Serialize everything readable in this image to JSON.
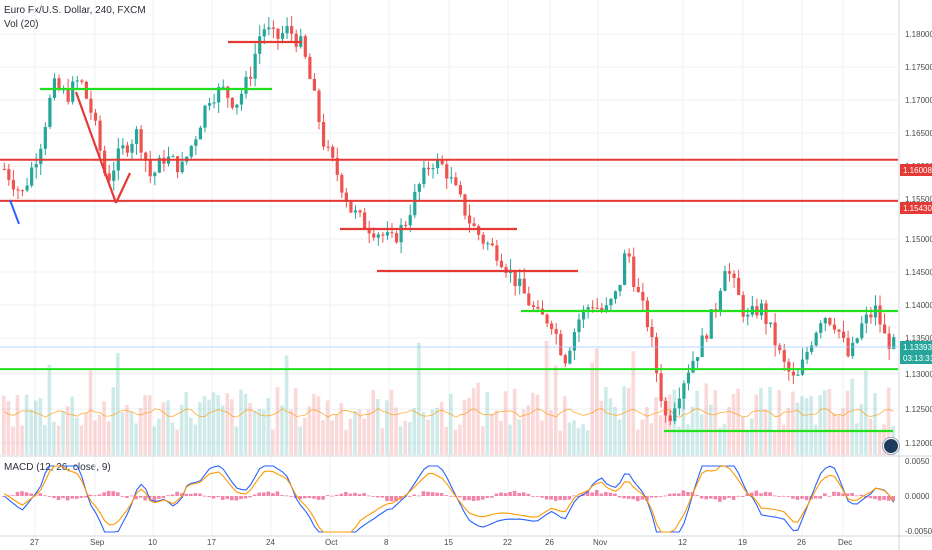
{
  "header": {
    "title": "Euro Fx/U.S. Dollar, 240, FXCM",
    "volume_label": "Vol (20)",
    "macd_label": "MACD (12, 26, close, 9)"
  },
  "colors": {
    "up": "#26a69a",
    "down": "#ef5350",
    "support": "#22e01e",
    "resistance": "#e53935",
    "trend": "#e53935",
    "macd_line": "#2962ff",
    "signal_line": "#ff9800",
    "vol_ma": "#ff9800",
    "grid": "#eef0f4"
  },
  "chart_data": {
    "type": "candlestick",
    "y_axis_prices": [
      "1.18000",
      "1.17500",
      "1.17000",
      "1.16500",
      "1.16000",
      "1.15500",
      "1.15000",
      "1.14500",
      "1.14000",
      "1.13500",
      "1.13000",
      "1.12500",
      "1.12000"
    ],
    "ylim": [
      1.1185,
      1.1826
    ],
    "price_tags": [
      {
        "value": "1.16008",
        "color": "#e53935"
      },
      {
        "value": "1.15430",
        "color": "#e53935"
      },
      {
        "value": "1.13393",
        "color": "#26a69a"
      },
      {
        "value": "03:13:31",
        "color": "#26a69a"
      }
    ],
    "x_tick_labels": [
      "27",
      "Sep",
      "10",
      "17",
      "24",
      "Oct",
      "8",
      "15",
      "22",
      "26",
      "Nov",
      "12",
      "19",
      "26",
      "Dec"
    ],
    "macd_axis": [
      "0.0050",
      "0.0000",
      "-0.0050"
    ],
    "horizontal_levels": [
      {
        "price": 1.1601,
        "color": "#e53935"
      },
      {
        "price": 1.1543,
        "color": "#e53935"
      },
      {
        "price": 1.1306,
        "color": "#22e01e"
      }
    ],
    "trend_segments": [
      {
        "color": "#22e01e",
        "points": [
          [
            1.1718
          ],
          [
            1.1718
          ]
        ]
      },
      {
        "color": "#e53935",
        "points": [
          [
            1.1785
          ],
          [
            1.1785
          ]
        ]
      }
    ],
    "price_path": [
      [
        0,
        1.1588
      ],
      [
        0.02,
        1.1552
      ],
      [
        0.04,
        1.162
      ],
      [
        0.055,
        1.1705
      ],
      [
        0.07,
        1.169
      ],
      [
        0.085,
        1.1715
      ],
      [
        0.1,
        1.166
      ],
      [
        0.115,
        1.157
      ],
      [
        0.13,
        1.161
      ],
      [
        0.15,
        1.164
      ],
      [
        0.165,
        1.1575
      ],
      [
        0.18,
        1.1605
      ],
      [
        0.2,
        1.159
      ],
      [
        0.215,
        1.1635
      ],
      [
        0.23,
        1.169
      ],
      [
        0.245,
        1.17
      ],
      [
        0.26,
        1.168
      ],
      [
        0.275,
        1.1715
      ],
      [
        0.29,
        1.179
      ],
      [
        0.305,
        1.177
      ],
      [
        0.32,
        1.1785
      ],
      [
        0.335,
        1.176
      ],
      [
        0.35,
        1.168
      ],
      [
        0.36,
        1.162
      ],
      [
        0.375,
        1.158
      ],
      [
        0.39,
        1.153
      ],
      [
        0.405,
        1.151
      ],
      [
        0.42,
        1.15
      ],
      [
        0.435,
        1.1485
      ],
      [
        0.45,
        1.151
      ],
      [
        0.465,
        1.156
      ],
      [
        0.48,
        1.16
      ],
      [
        0.495,
        1.159
      ],
      [
        0.51,
        1.155
      ],
      [
        0.525,
        1.151
      ],
      [
        0.54,
        1.1485
      ],
      [
        0.555,
        1.147
      ],
      [
        0.57,
        1.144
      ],
      [
        0.585,
        1.141
      ],
      [
        0.6,
        1.138
      ],
      [
        0.615,
        1.1375
      ],
      [
        0.63,
        1.132
      ],
      [
        0.645,
        1.1375
      ],
      [
        0.66,
        1.14
      ],
      [
        0.675,
        1.1385
      ],
      [
        0.69,
        1.1415
      ],
      [
        0.7,
        1.148
      ],
      [
        0.71,
        1.142
      ],
      [
        0.725,
        1.1365
      ],
      [
        0.735,
        1.129
      ],
      [
        0.745,
        1.123
      ],
      [
        0.755,
        1.1265
      ],
      [
        0.77,
        1.131
      ],
      [
        0.785,
        1.1345
      ],
      [
        0.8,
        1.1395
      ],
      [
        0.81,
        1.1455
      ],
      [
        0.82,
        1.1425
      ],
      [
        0.835,
        1.1375
      ],
      [
        0.85,
        1.1395
      ],
      [
        0.865,
        1.135
      ],
      [
        0.875,
        1.1315
      ],
      [
        0.89,
        1.1285
      ],
      [
        0.905,
        1.134
      ],
      [
        0.92,
        1.1385
      ],
      [
        0.935,
        1.137
      ],
      [
        0.95,
        1.132
      ],
      [
        0.965,
        1.137
      ],
      [
        0.98,
        1.139
      ],
      [
        0.99,
        1.135
      ],
      [
        1.0,
        1.1339
      ]
    ]
  }
}
